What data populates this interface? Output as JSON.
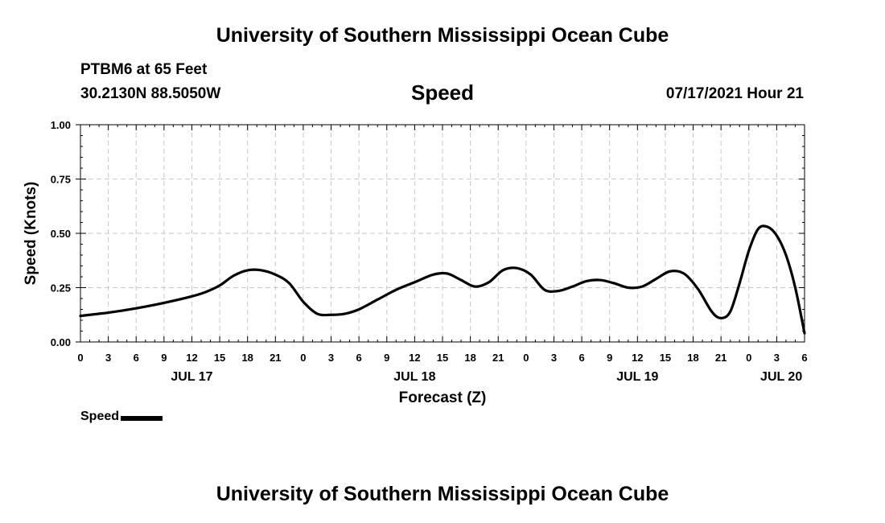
{
  "header": {
    "top_title": "University of Southern Mississippi Ocean Cube",
    "station": "PTBM6 at 65 Feet",
    "coords": "30.2130N  88.5050W",
    "parameter": "Speed",
    "datetime": "07/17/2021 Hour 21",
    "bottom_title": "University of Southern Mississippi Ocean Cube"
  },
  "legend": {
    "label": "Speed"
  },
  "chart_data": {
    "type": "line",
    "title": "Speed",
    "xlabel": "Forecast (Z)",
    "ylabel": "Speed (Knots)",
    "x_unit": "hours since JUL 17 00Z",
    "xlim": [
      0,
      78
    ],
    "ylim": [
      0,
      1
    ],
    "grid": true,
    "y_ticks": [
      0,
      0.25,
      0.5,
      0.75,
      1.0
    ],
    "y_tick_labels": [
      "0.00",
      "0.25",
      "0.50",
      "0.75",
      "1.00"
    ],
    "x_ticks": [
      0,
      3,
      6,
      9,
      12,
      15,
      18,
      21,
      24,
      27,
      30,
      33,
      36,
      39,
      42,
      45,
      48,
      51,
      54,
      57,
      60,
      63,
      66,
      69,
      72,
      75,
      78
    ],
    "x_tick_labels": [
      "0",
      "3",
      "6",
      "9",
      "12",
      "15",
      "18",
      "21",
      "0",
      "3",
      "6",
      "9",
      "12",
      "15",
      "18",
      "21",
      "0",
      "3",
      "6",
      "9",
      "12",
      "15",
      "18",
      "21",
      "0",
      "3",
      "6"
    ],
    "day_labels": [
      {
        "hour": 12,
        "label": "JUL 17"
      },
      {
        "hour": 36,
        "label": "JUL 18"
      },
      {
        "hour": 60,
        "label": "JUL 19"
      },
      {
        "hour": 75.5,
        "label": "JUL 20"
      }
    ],
    "series": [
      {
        "name": "Speed",
        "color": "#000000",
        "x": [
          0,
          3,
          6,
          9,
          12,
          13.5,
          15,
          16.5,
          18,
          19.5,
          21,
          22.5,
          24,
          25.5,
          27,
          28.5,
          30,
          32,
          34,
          36,
          38,
          39.5,
          41,
          42.5,
          44,
          45.5,
          47,
          48.5,
          50,
          51.5,
          53,
          54.5,
          56,
          57.5,
          59,
          60.5,
          62,
          63.5,
          65,
          66.5,
          68,
          69,
          70,
          71,
          72,
          73,
          74,
          75,
          76,
          77,
          78
        ],
        "y": [
          0.12,
          0.135,
          0.155,
          0.18,
          0.21,
          0.23,
          0.26,
          0.305,
          0.33,
          0.33,
          0.31,
          0.27,
          0.185,
          0.13,
          0.125,
          0.13,
          0.15,
          0.195,
          0.24,
          0.275,
          0.31,
          0.315,
          0.285,
          0.255,
          0.275,
          0.33,
          0.34,
          0.31,
          0.24,
          0.235,
          0.255,
          0.28,
          0.285,
          0.27,
          0.25,
          0.255,
          0.29,
          0.325,
          0.315,
          0.245,
          0.14,
          0.11,
          0.14,
          0.27,
          0.42,
          0.52,
          0.53,
          0.49,
          0.4,
          0.25,
          0.04
        ]
      }
    ]
  }
}
